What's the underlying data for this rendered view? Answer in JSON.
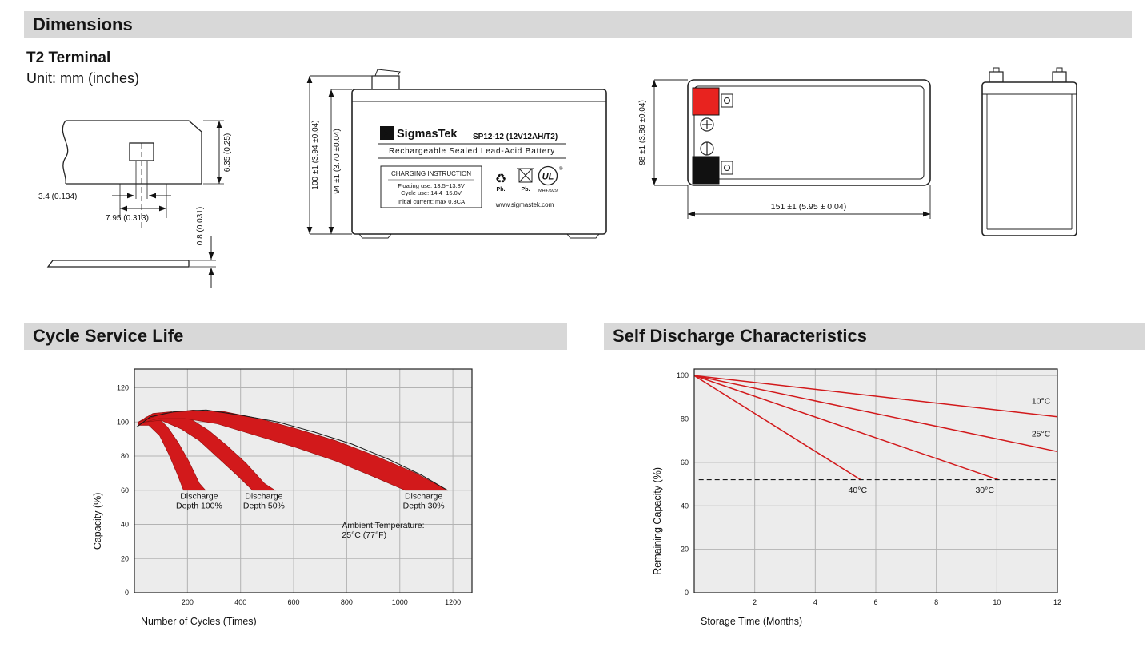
{
  "colors": {
    "bar_bg": "#d8d8d8",
    "red": "#d2191b",
    "terminal_red": "#e8231f",
    "plot_bg": "#ececec",
    "grid": "#b3b3b3"
  },
  "headers": {
    "dimensions": "Dimensions",
    "cycle_service_life": "Cycle Service Life",
    "self_discharge": "Self Discharge Characteristics"
  },
  "terminal_block": {
    "title": "T2 Terminal",
    "unit": "Unit: mm (inches)",
    "dim_height": "6.35 (0.25)",
    "dim_blade": "3.4 (0.134)",
    "dim_base": "7.95 (0.313)",
    "dim_thickness": "0.8 (0.031)"
  },
  "front_view": {
    "logo_glyph": "Σ",
    "brand": "SigmasTek",
    "model": "SP12-12 (12V12AH/T2)",
    "subtitle": "Rechargeable Sealed Lead-Acid Battery",
    "charging": {
      "title": "CHARGING INSTRUCTION",
      "line1": "Floating use: 13.5~13.8V",
      "line2": "Cycle use: 14.4~15.0V",
      "line3": "Initial current: max 0.3CA"
    },
    "recycle_icon": "♻",
    "pb_recycle": "Pb.",
    "pb_bin": "Pb.",
    "ul_text": "UL",
    "ul_reg": "®",
    "ul_code": "MH47929",
    "website": "www.sigmastek.com",
    "dim_total_height": "100 ±1 (3.94 ±0.04)",
    "dim_case_height": "94 ±1 (3.70 ±0.04)"
  },
  "top_view": {
    "dim_depth": "98 ±1 (3.86 ±0.04)",
    "dim_length": "151 ±1 (5.95 ± 0.04)"
  },
  "chart_data": [
    {
      "id": "chart-cycle-life",
      "type": "area",
      "title": "Cycle Service Life",
      "xlabel": "Number of Cycles (Times)",
      "ylabel": "Capacity (%)",
      "xlim": [
        0,
        1272
      ],
      "ylim": [
        0,
        131
      ],
      "xticks": [
        200,
        400,
        600,
        800,
        1000,
        1200
      ],
      "yticks": [
        0,
        20,
        40,
        60,
        80,
        100,
        120
      ],
      "grid": true,
      "legend": "none",
      "band_color": "#d2191b",
      "bands": [
        {
          "name": "Discharge Depth 100%",
          "polygon": [
            [
              15,
              99
            ],
            [
              45,
              103
            ],
            [
              85,
              103
            ],
            [
              125,
              97
            ],
            [
              165,
              88
            ],
            [
              205,
              77
            ],
            [
              245,
              64
            ],
            [
              268,
              60
            ],
            [
              185,
              60
            ],
            [
              160,
              70
            ],
            [
              130,
              81
            ],
            [
              95,
              92
            ],
            [
              55,
              98
            ],
            [
              15,
              98
            ]
          ]
        },
        {
          "name": "Discharge Depth 50%",
          "polygon": [
            [
              15,
              100
            ],
            [
              70,
              105
            ],
            [
              140,
              106
            ],
            [
              210,
              102
            ],
            [
              280,
              95
            ],
            [
              350,
              86
            ],
            [
              420,
              76
            ],
            [
              490,
              64
            ],
            [
              530,
              60
            ],
            [
              445,
              60
            ],
            [
              385,
              69
            ],
            [
              315,
              79
            ],
            [
              245,
              89
            ],
            [
              175,
              96
            ],
            [
              100,
              101
            ],
            [
              40,
              100
            ],
            [
              15,
              99
            ]
          ]
        },
        {
          "name": "Discharge Depth 30%",
          "polygon": [
            [
              15,
              100
            ],
            [
              110,
              105
            ],
            [
              220,
              107
            ],
            [
              340,
              106
            ],
            [
              470,
              102
            ],
            [
              610,
              96
            ],
            [
              760,
              89
            ],
            [
              910,
              80
            ],
            [
              1060,
              70
            ],
            [
              1180,
              60
            ],
            [
              1020,
              60
            ],
            [
              900,
              68
            ],
            [
              760,
              77
            ],
            [
              610,
              85
            ],
            [
              460,
              92
            ],
            [
              310,
              99
            ],
            [
              190,
              102
            ],
            [
              90,
              102
            ],
            [
              15,
              99
            ]
          ]
        }
      ],
      "curves": [
        {
          "name": "envelope",
          "color": "#1a1a1a",
          "width": 1,
          "points": [
            [
              8,
              97
            ],
            [
              60,
              103
            ],
            [
              150,
              106
            ],
            [
              270,
              107
            ],
            [
              400,
              104
            ],
            [
              540,
              100
            ],
            [
              680,
              94
            ],
            [
              820,
              87
            ],
            [
              960,
              78
            ],
            [
              1080,
              69
            ],
            [
              1180,
              60
            ]
          ]
        }
      ],
      "annotations": [
        {
          "lines": [
            "Discharge",
            "Depth 100%"
          ],
          "x": 244,
          "y": 55,
          "anchor": "middle"
        },
        {
          "lines": [
            "Discharge",
            "Depth 50%"
          ],
          "x": 488,
          "y": 55,
          "anchor": "middle"
        },
        {
          "lines": [
            "Discharge",
            "Depth 30%"
          ],
          "x": 1090,
          "y": 55,
          "anchor": "middle"
        },
        {
          "lines": [
            "Ambient Temperature:",
            "25°C (77°F)"
          ],
          "x": 782,
          "y": 38,
          "anchor": "start"
        }
      ]
    },
    {
      "id": "chart-self-discharge",
      "type": "line",
      "title": "Self Discharge Characteristics",
      "xlabel": "Storage Time (Months)",
      "ylabel": "Remaining Capacity (%)",
      "xlim": [
        0,
        12
      ],
      "ylim": [
        0,
        103
      ],
      "xticks": [
        2,
        4,
        6,
        8,
        10,
        12
      ],
      "yticks": [
        0,
        20,
        40,
        60,
        80,
        100
      ],
      "grid": true,
      "legend": "inline-labels",
      "series": [
        {
          "name": "10°C",
          "color": "#d2191b",
          "points": [
            [
              0,
              100
            ],
            [
              12,
              81
            ]
          ]
        },
        {
          "name": "25°C",
          "color": "#d2191b",
          "points": [
            [
              0,
              100
            ],
            [
              12,
              65
            ]
          ]
        },
        {
          "name": "30°C",
          "color": "#d2191b",
          "points": [
            [
              0,
              100
            ],
            [
              10.05,
              52
            ]
          ]
        },
        {
          "name": "40°C",
          "color": "#d2191b",
          "points": [
            [
              0,
              100
            ],
            [
              5.5,
              52
            ]
          ]
        },
        {
          "name": "50-percent-reference",
          "color": "#1a1a1a",
          "dash": "6,4",
          "width": 1.1,
          "points": [
            [
              0.15,
              52
            ],
            [
              12,
              52
            ]
          ]
        }
      ],
      "annotations": [
        {
          "lines": [
            "10°C"
          ],
          "x": 11.15,
          "y": 87,
          "anchor": "start"
        },
        {
          "lines": [
            "25°C"
          ],
          "x": 11.15,
          "y": 72,
          "anchor": "start"
        },
        {
          "lines": [
            "40°C"
          ],
          "x": 5.4,
          "y": 46,
          "anchor": "middle"
        },
        {
          "lines": [
            "30°C"
          ],
          "x": 9.6,
          "y": 46,
          "anchor": "middle"
        }
      ]
    }
  ]
}
